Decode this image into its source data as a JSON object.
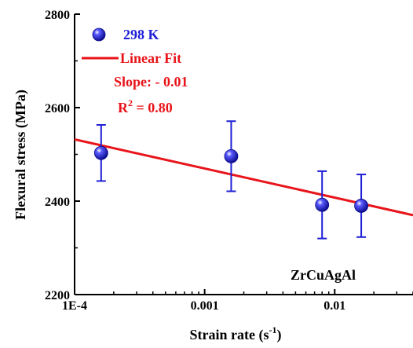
{
  "chart_data": {
    "type": "scatter",
    "x_scale": "log",
    "xlim": [
      0.0001,
      0.04
    ],
    "ylim": [
      2200,
      2800
    ],
    "xticks": [
      0.0001,
      0.001,
      0.01
    ],
    "xtick_labels": [
      "1E-4",
      "0.001",
      "0.01"
    ],
    "yticks": [
      2200,
      2400,
      2600,
      2800
    ],
    "ytick_labels": [
      "2200",
      "2400",
      "2600",
      "2800"
    ],
    "xlabel": "Strain rate (s",
    "xlabel_sup": "-1",
    "xlabel_close": ")",
    "ylabel": "Flexural stress (MPa)",
    "grid": false,
    "legend_position": "top-left",
    "series": [
      {
        "name": "298 K",
        "color": "#1f1fd6",
        "marker": "sphere",
        "points": [
          {
            "x": 0.00016,
            "y": 2503,
            "err": 60
          },
          {
            "x": 0.0016,
            "y": 2496,
            "err": 75
          },
          {
            "x": 0.008,
            "y": 2392,
            "err": 72
          },
          {
            "x": 0.016,
            "y": 2390,
            "err": 67
          }
        ]
      }
    ],
    "fit": {
      "name": "Linear Fit",
      "color": "#e8141a",
      "start": {
        "x": 0.0001,
        "y": 2532
      },
      "end": {
        "x": 0.04,
        "y": 2370
      }
    },
    "annotations": {
      "slope": "Slope: - 0.01",
      "r2_prefix": "R",
      "r2_sup": "2",
      "r2_suffix": " = 0.80",
      "sample": "ZrCuAgAl"
    }
  }
}
